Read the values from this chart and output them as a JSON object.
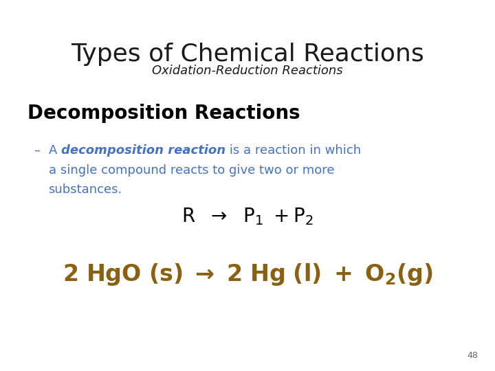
{
  "title": "Types of Chemical Reactions",
  "subtitle": "Oxidation-Reduction Reactions",
  "section_header": "Decomposition Reactions",
  "page_number": "48",
  "title_color": "#1a1a1a",
  "subtitle_color": "#1a1a1a",
  "section_header_color": "#000000",
  "bullet_color": "#4472c4",
  "formula_simple_color": "#000000",
  "formula_chem_color": "#8B6010",
  "background_color": "#ffffff",
  "title_fontsize": 26,
  "subtitle_fontsize": 13,
  "section_header_fontsize": 20,
  "bullet_fontsize": 13,
  "formula_simple_fontsize": 20,
  "formula_chem_fontsize": 24,
  "page_number_fontsize": 9
}
